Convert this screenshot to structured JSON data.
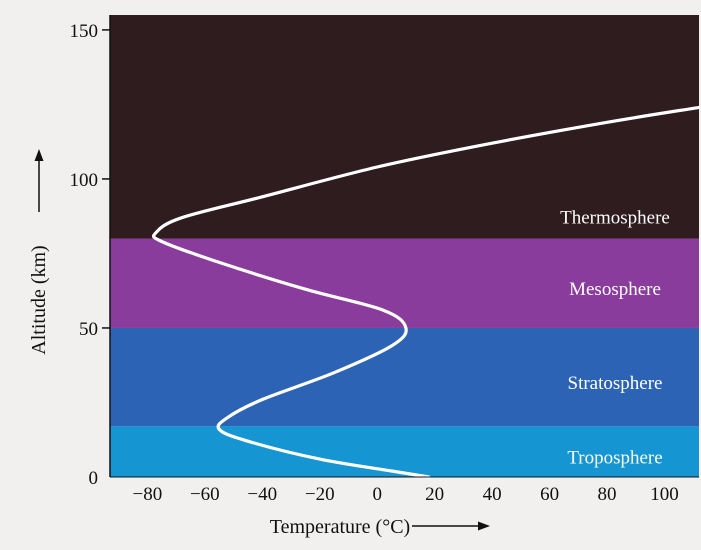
{
  "chart_data": {
    "type": "line",
    "title": "",
    "xlabel": "Temperature (°C)",
    "ylabel": "Altitude (km)",
    "xlim": [
      -93,
      112
    ],
    "ylim": [
      0,
      155
    ],
    "x_ticks": [
      -80,
      -60,
      -40,
      -20,
      0,
      20,
      40,
      60,
      80,
      100
    ],
    "x_tick_labels": [
      "−80",
      "−60",
      "−40",
      "−20",
      "0",
      "20",
      "40",
      "60",
      "80",
      "100"
    ],
    "y_ticks": [
      0,
      50,
      100,
      150
    ],
    "y_tick_labels": [
      "0",
      "50",
      "100",
      "150"
    ],
    "grid": false,
    "legend": "none",
    "layers": [
      {
        "name": "Troposphere",
        "from_km": 0,
        "to_km": 17,
        "color": "#1596d2"
      },
      {
        "name": "Stratosphere",
        "from_km": 17,
        "to_km": 50,
        "color": "#2c63b4"
      },
      {
        "name": "Mesosphere",
        "from_km": 50,
        "to_km": 80,
        "color": "#8a3c9c"
      },
      {
        "name": "Thermosphere",
        "from_km": 80,
        "to_km": 155,
        "color": "#2e1c1f"
      }
    ],
    "series": [
      {
        "color": "#ffffff",
        "points": [
          {
            "x": 18,
            "y": 0
          },
          {
            "x": 5,
            "y": 2
          },
          {
            "x": -20,
            "y": 6
          },
          {
            "x": -45,
            "y": 12
          },
          {
            "x": -55,
            "y": 16
          },
          {
            "x": -52,
            "y": 20
          },
          {
            "x": -40,
            "y": 26
          },
          {
            "x": -15,
            "y": 35
          },
          {
            "x": 5,
            "y": 44
          },
          {
            "x": 10,
            "y": 50
          },
          {
            "x": 2,
            "y": 56
          },
          {
            "x": -25,
            "y": 63
          },
          {
            "x": -55,
            "y": 72
          },
          {
            "x": -75,
            "y": 79
          },
          {
            "x": -77,
            "y": 82
          },
          {
            "x": -68,
            "y": 87
          },
          {
            "x": -40,
            "y": 94
          },
          {
            "x": 0,
            "y": 104
          },
          {
            "x": 40,
            "y": 112
          },
          {
            "x": 80,
            "y": 119
          },
          {
            "x": 112,
            "y": 124
          }
        ]
      }
    ]
  }
}
